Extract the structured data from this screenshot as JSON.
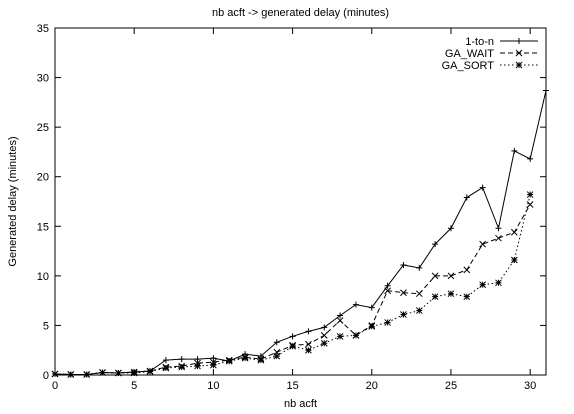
{
  "chart_data": {
    "type": "line",
    "title": "nb acft -> generated delay (minutes)",
    "xlabel": "nb acft",
    "ylabel": "Generated delay (minutes)",
    "xlim": [
      0,
      31
    ],
    "ylim": [
      0,
      35
    ],
    "xticks": [
      0,
      5,
      10,
      15,
      20,
      25,
      30
    ],
    "yticks": [
      0,
      5,
      10,
      15,
      20,
      25,
      30,
      35
    ],
    "grid": false,
    "legend_position": "top-right",
    "series": [
      {
        "name": "1-to-n",
        "style": "solid",
        "marker": "+",
        "color": "#000000",
        "x": [
          0,
          1,
          2,
          3,
          4,
          5,
          6,
          7,
          8,
          9,
          10,
          11,
          12,
          13,
          14,
          15,
          16,
          17,
          18,
          19,
          20,
          21,
          22,
          23,
          24,
          25,
          26,
          27,
          28,
          29,
          30,
          31
        ],
        "y": [
          0.1,
          0.05,
          0.05,
          0.25,
          0.2,
          0.3,
          0.4,
          1.5,
          1.6,
          1.6,
          1.7,
          1.4,
          2.1,
          1.9,
          3.3,
          3.9,
          4.4,
          4.8,
          6.0,
          7.1,
          6.8,
          9.0,
          11.1,
          10.8,
          13.2,
          14.8,
          17.9,
          18.9,
          14.8,
          22.6,
          21.8,
          28.7
        ]
      },
      {
        "name": "GA_WAIT",
        "style": "dashed",
        "marker": "x",
        "color": "#000000",
        "x": [
          0,
          1,
          2,
          3,
          4,
          5,
          6,
          7,
          8,
          9,
          10,
          11,
          12,
          13,
          14,
          15,
          16,
          17,
          18,
          19,
          20,
          21,
          22,
          23,
          24,
          25,
          26,
          27,
          28,
          29,
          30
        ],
        "y": [
          0.1,
          0.05,
          0.05,
          0.25,
          0.2,
          0.3,
          0.4,
          0.8,
          0.9,
          1.2,
          1.3,
          1.5,
          1.8,
          1.6,
          2.3,
          3.0,
          3.1,
          4.0,
          5.5,
          4.0,
          5.0,
          8.5,
          8.3,
          8.2,
          10.0,
          10.0,
          10.6,
          13.2,
          13.8,
          14.4,
          17.2
        ]
      },
      {
        "name": "GA_SORT",
        "style": "dotted",
        "marker": "*",
        "color": "#000000",
        "x": [
          0,
          1,
          2,
          3,
          4,
          5,
          6,
          7,
          8,
          9,
          10,
          11,
          12,
          13,
          14,
          15,
          16,
          17,
          18,
          19,
          20,
          21,
          22,
          23,
          24,
          25,
          26,
          27,
          28,
          29,
          30
        ],
        "y": [
          0.1,
          0.05,
          0.05,
          0.25,
          0.2,
          0.2,
          0.35,
          0.7,
          0.8,
          0.9,
          1.0,
          1.4,
          1.7,
          1.5,
          1.9,
          2.9,
          2.5,
          3.2,
          3.9,
          4.0,
          4.9,
          5.3,
          6.1,
          6.5,
          7.9,
          8.2,
          7.9,
          9.1,
          9.3,
          11.6,
          18.2
        ]
      }
    ]
  }
}
